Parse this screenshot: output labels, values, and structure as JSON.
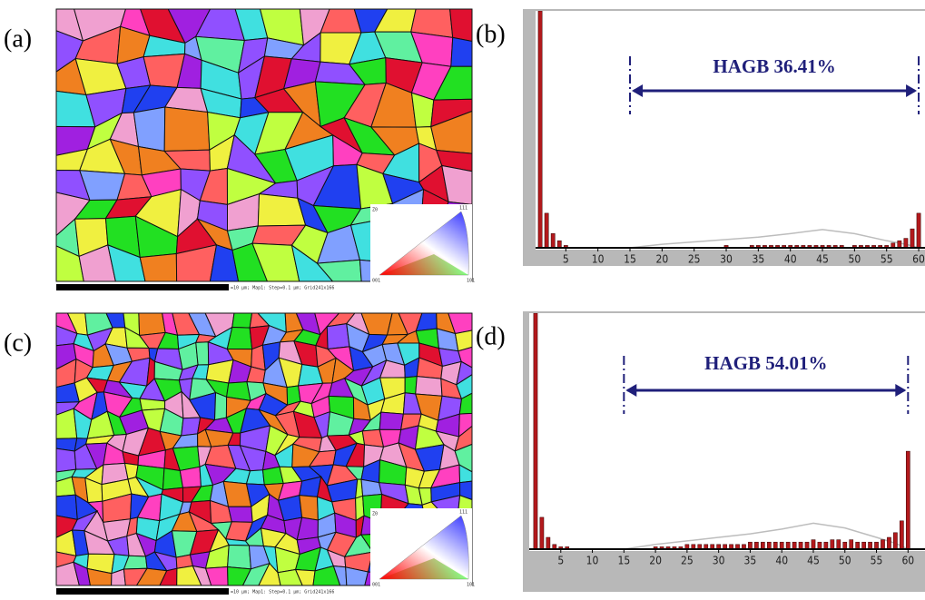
{
  "maps": [
    {
      "panel_label": "(a)",
      "scale_text": "=10 µm; Map1: Step=0.1 µm; Grid241x166",
      "ipf_labels": [
        "Z0",
        "111",
        "001",
        "101"
      ]
    },
    {
      "panel_label": "(c)",
      "scale_text": "=10 µm; Map1: Step=0.1 µm; Grid241x166",
      "ipf_labels": [
        "Z0",
        "111",
        "001",
        "101"
      ]
    }
  ],
  "chart_data": [
    {
      "type": "bar",
      "panel_label": "(b)",
      "annotation": {
        "text": "HAGB  36.41%",
        "x_range": [
          15,
          60
        ]
      },
      "x": [
        1,
        2,
        3,
        4,
        5,
        6,
        7,
        8,
        9,
        10,
        11,
        12,
        13,
        14,
        15,
        16,
        17,
        18,
        19,
        20,
        21,
        22,
        23,
        24,
        25,
        26,
        27,
        28,
        29,
        30,
        31,
        32,
        33,
        34,
        35,
        36,
        37,
        38,
        39,
        40,
        41,
        42,
        43,
        44,
        45,
        46,
        47,
        48,
        49,
        50,
        51,
        52,
        53,
        54,
        55,
        56,
        57,
        58,
        59,
        60
      ],
      "values": [
        100,
        14.6,
        6,
        3,
        1,
        0,
        0,
        0,
        0,
        0,
        0,
        0,
        0,
        0,
        0,
        0,
        0,
        0,
        0,
        0,
        0,
        0,
        0,
        0,
        0,
        0,
        0,
        0,
        0,
        1,
        0,
        0,
        0,
        1,
        1,
        1,
        1,
        1,
        1,
        1,
        1,
        1,
        1,
        1,
        1,
        1,
        1,
        1,
        0,
        1,
        1,
        1,
        1,
        1,
        1,
        2,
        3,
        4,
        8,
        14.6
      ],
      "color": "#b3191c",
      "curve": {
        "x": [
          15,
          20,
          25,
          30,
          35,
          40,
          45,
          50,
          55,
          58,
          60
        ],
        "values": [
          0,
          1.5,
          2.5,
          3.5,
          4.5,
          6,
          7.7,
          6,
          3,
          1.5,
          0
        ],
        "color": "#bdbdbd"
      },
      "xlim": [
        0,
        60.7
      ],
      "ylim": [
        0,
        100
      ],
      "xticks": [
        5,
        10,
        15,
        20,
        25,
        30,
        35,
        40,
        45,
        50,
        55,
        60
      ]
    },
    {
      "type": "bar",
      "panel_label": "(d)",
      "annotation": {
        "text": "HAGB  54.01%",
        "x_range": [
          15,
          60
        ]
      },
      "x": [
        1,
        2,
        3,
        4,
        5,
        6,
        7,
        8,
        9,
        10,
        11,
        12,
        13,
        14,
        15,
        16,
        17,
        18,
        19,
        20,
        21,
        22,
        23,
        24,
        25,
        26,
        27,
        28,
        29,
        30,
        31,
        32,
        33,
        34,
        35,
        36,
        37,
        38,
        39,
        40,
        41,
        42,
        43,
        44,
        45,
        46,
        47,
        48,
        49,
        50,
        51,
        52,
        53,
        54,
        55,
        56,
        57,
        58,
        59,
        60
      ],
      "values": [
        100,
        13.5,
        5,
        2,
        1,
        1,
        0,
        0,
        0,
        0,
        0,
        0,
        0,
        0,
        0,
        0,
        0,
        0,
        0,
        1,
        1,
        1,
        1,
        1,
        2,
        2,
        2,
        2,
        2,
        2,
        2,
        2,
        2,
        2,
        3,
        3,
        3,
        3,
        3,
        3,
        3,
        3,
        3,
        3,
        4,
        3,
        3,
        4,
        4,
        3,
        4,
        3,
        3,
        3,
        3,
        4,
        5,
        7,
        12,
        41.5
      ],
      "color": "#b3191c",
      "curve": {
        "x": [
          15,
          20,
          25,
          30,
          35,
          40,
          45,
          50,
          55,
          58,
          60
        ],
        "values": [
          0,
          2,
          3.5,
          5,
          6.5,
          8.5,
          11,
          9,
          5,
          2.5,
          0
        ],
        "color": "#bdbdbd"
      },
      "xlim": [
        0,
        62.4
      ],
      "ylim": [
        0,
        100
      ],
      "xticks": [
        5,
        10,
        15,
        20,
        25,
        30,
        35,
        40,
        45,
        50,
        55,
        60
      ]
    }
  ]
}
